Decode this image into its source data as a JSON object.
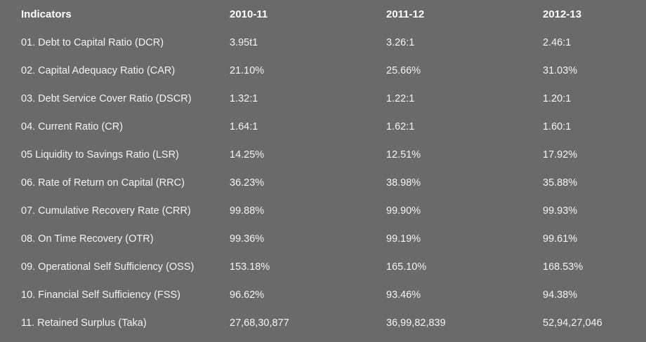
{
  "table": {
    "headers": [
      "Indicators",
      "2010-11",
      "2011-12",
      "2012-13"
    ],
    "rows": [
      [
        "01.  Debt to Capital Ratio (DCR)",
        "3.95t1",
        "3.26:1",
        "2.46:1"
      ],
      [
        "02.  Capital Adequacy Ratio (CAR)",
        "21.10%",
        "25.66%",
        "31.03%"
      ],
      [
        "03.  Debt Service Cover Ratio (DSCR)",
        "1.32:1",
        "1.22:1",
        "1.20:1"
      ],
      [
        "04.  Current Ratio (CR)",
        "1.64:1",
        "1.62:1",
        "1.60:1"
      ],
      [
        "05  Liquidity to Savings Ratio (LSR)",
        "14.25%",
        "12.51%",
        "17.92%"
      ],
      [
        "06.  Rate of Return on Capital (RRC)",
        "36.23%",
        "38.98%",
        "35.88%"
      ],
      [
        "07.  Cumulative Recovery Rate (CRR)",
        "99.88%",
        "99.90%",
        "99.93%"
      ],
      [
        "08.  On Time Recovery (OTR)",
        "99.36%",
        "99.19%",
        "99.61%"
      ],
      [
        "09.  Operational Self Sufficiency (OSS)",
        "153.18%",
        "165.10%",
        "168.53%"
      ],
      [
        "10. Financial Self Sufficiency (FSS)",
        "96.62%",
        "93.46%",
        "94.38%"
      ],
      [
        "11. Retained Surplus (Taka)",
        "27,68,30,877",
        "36,99,82,839",
        "52,94,27,046"
      ]
    ]
  },
  "colors": {
    "background": "#6a6a6a",
    "text": "#ffffff"
  }
}
